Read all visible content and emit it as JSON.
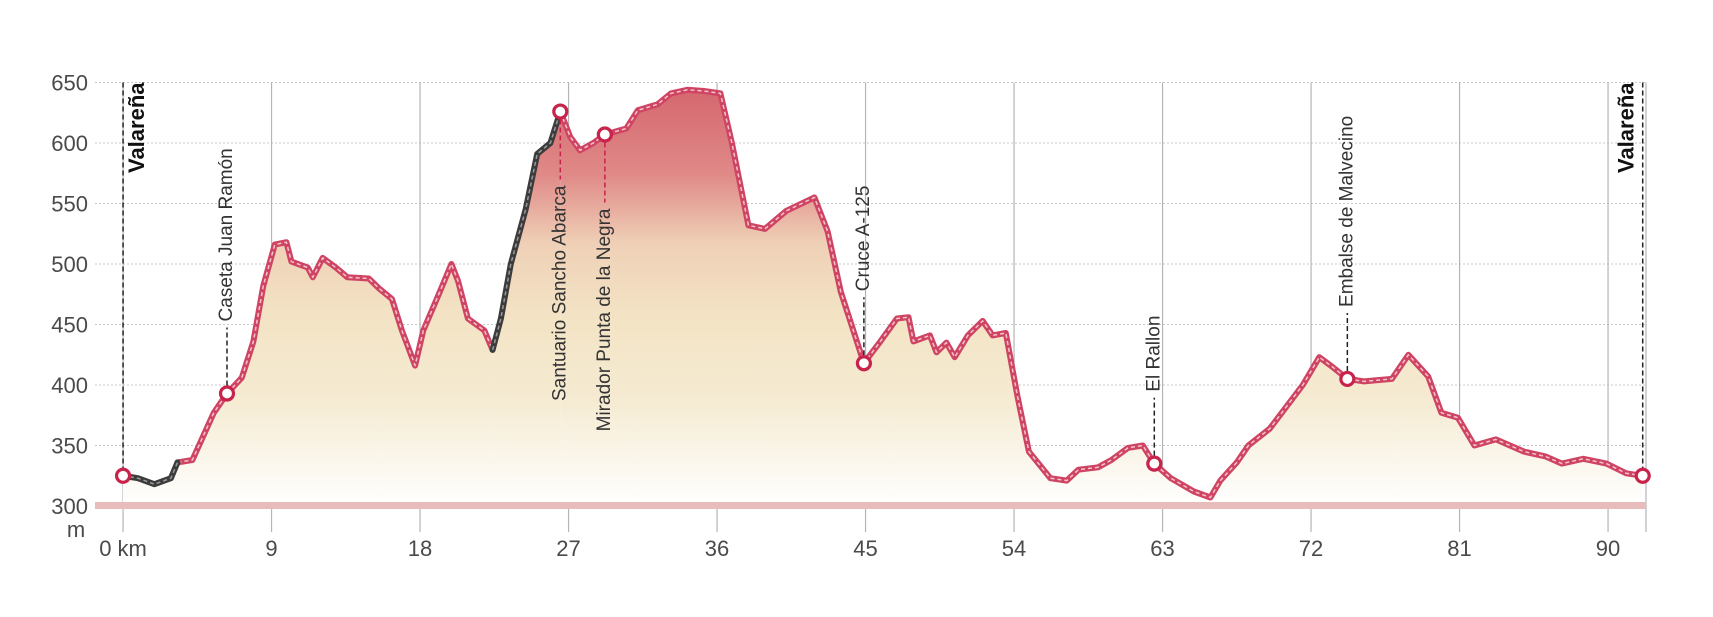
{
  "chart_data": {
    "type": "elevation",
    "y_unit": "m",
    "xlim": [
      -1.7,
      92.3
    ],
    "ylim": [
      300,
      650
    ],
    "yticks": [
      300,
      350,
      400,
      450,
      500,
      550,
      600,
      650
    ],
    "xticks": [
      {
        "value": 0,
        "label": "0 km"
      },
      9,
      18,
      27,
      36,
      45,
      54,
      63,
      72,
      81,
      90
    ],
    "grid": true,
    "x": [
      0,
      0.9,
      1.9,
      2.9,
      3.3,
      4.2,
      4.9,
      5.5,
      6.3,
      7.2,
      7.9,
      8.5,
      9.2,
      9.9,
      10.2,
      11.2,
      11.5,
      12.1,
      12.9,
      13.6,
      14.9,
      15.5,
      16.3,
      16.9,
      17.7,
      18.2,
      19.2,
      19.9,
      20.3,
      20.9,
      21.9,
      22.4,
      22.9,
      23.5,
      24.4,
      25.1,
      25.9,
      26.5,
      27.1,
      27.7,
      28.5,
      29.2,
      30.5,
      31.2,
      32.4,
      33.2,
      34.2,
      35.2,
      36.2,
      36.9,
      37.9,
      38.9,
      40.2,
      41.9,
      42.7,
      43.5,
      44.9,
      45.9,
      46.9,
      47.6,
      47.9,
      48.9,
      49.3,
      49.9,
      50.4,
      51.2,
      52.1,
      52.7,
      53.5,
      54.2,
      54.9,
      56.2,
      57.2,
      57.9,
      59.1,
      59.9,
      60.9,
      61.8,
      62.5,
      63.5,
      64.9,
      65.9,
      66.5,
      67.5,
      68.2,
      69.5,
      70.5,
      71.5,
      72.5,
      73.3,
      74.2,
      75.2,
      76.9,
      77.9,
      79.1,
      79.9,
      80.9,
      81.9,
      83.2,
      84.9,
      86.2,
      87.2,
      88.5,
      89.9,
      91.1,
      92.1
    ],
    "series": [
      {
        "color": "#cf4463",
        "dash_color": "#f4c4cc",
        "values": [
          null,
          null,
          null,
          null,
          336,
          338,
          359,
          377,
          393,
          406,
          436,
          482,
          516,
          518,
          502,
          497,
          489,
          505,
          497,
          489,
          488,
          480,
          471,
          445,
          416,
          445,
          477,
          500,
          486,
          455,
          445,
          429,
          null,
          null,
          null,
          null,
          null,
          626,
          605,
          594,
          600,
          607,
          612,
          627,
          632,
          641,
          644,
          643,
          641,
          600,
          532,
          529,
          544,
          555,
          527,
          477,
          418,
          436,
          455,
          456,
          436,
          441,
          427,
          435,
          423,
          441,
          453,
          441,
          443,
          391,
          345,
          323,
          321,
          330,
          332,
          338,
          348,
          350,
          335,
          323,
          312,
          307,
          321,
          336,
          350,
          364,
          382,
          400,
          423,
          415,
          405,
          403,
          405,
          425,
          407,
          377,
          373,
          350,
          355,
          345,
          341,
          335,
          339,
          335,
          327,
          325
        ]
      },
      {
        "color": "#3c3c3c",
        "dash_color": "#9a9a9a",
        "values": [
          325,
          323,
          318,
          323,
          336,
          null,
          null,
          null,
          null,
          null,
          null,
          null,
          null,
          null,
          null,
          null,
          null,
          null,
          null,
          null,
          null,
          null,
          null,
          null,
          null,
          null,
          null,
          null,
          null,
          null,
          null,
          429,
          455,
          500,
          545,
          591,
          600,
          626,
          null,
          null,
          null,
          null,
          null,
          null,
          null,
          null,
          null,
          null,
          null,
          null,
          null,
          null,
          null,
          null,
          null,
          null,
          null,
          null,
          null,
          null,
          null,
          null,
          null,
          null,
          null,
          null,
          null,
          null,
          null,
          null,
          null,
          null,
          null,
          null,
          null,
          null,
          null,
          null,
          null,
          null,
          null,
          null,
          null,
          null,
          null,
          null,
          null,
          null,
          null,
          null,
          null,
          null,
          null,
          null,
          null,
          null,
          null,
          null,
          null,
          null,
          null,
          null,
          null,
          null,
          null,
          null
        ]
      }
    ],
    "marker_color": "#c8234a",
    "waypoints": [
      {
        "label": "Valareña",
        "x": 0,
        "y": 325
      },
      {
        "label": "Caseta Juan Ramón",
        "x": 6.3,
        "y": 393
      },
      {
        "label": "Santuario Sancho Abarca",
        "x": 26.5,
        "y": 626
      },
      {
        "label": "Mirador Punta de la Negra",
        "x": 29.2,
        "y": 607
      },
      {
        "label": "Cruce A-125",
        "x": 44.9,
        "y": 418
      },
      {
        "label": "El Rallon",
        "x": 62.5,
        "y": 335
      },
      {
        "label": "Embalse de Malvecino",
        "x": 74.2,
        "y": 405
      },
      {
        "label": "Valareña",
        "x": 92.1,
        "y": 325
      }
    ]
  }
}
